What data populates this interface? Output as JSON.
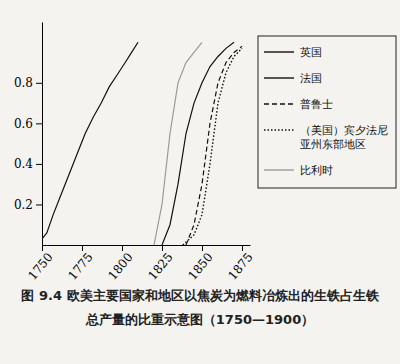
{
  "chart_data": {
    "type": "line",
    "title": "图 9.4  欧美主要国家和地区以焦炭为燃料冶炼出的生铁占生铁总产量的比重示意图（1750—1900）",
    "xlim": [
      1750,
      1880
    ],
    "xticks": [
      1750,
      1775,
      1800,
      1825,
      1850,
      1875
    ],
    "ylim": [
      0,
      1.1
    ],
    "yticks": [
      0.2,
      0.4,
      0.6,
      0.8
    ],
    "grid": false,
    "legend": "right",
    "series": [
      {
        "name": "英国",
        "color": "#111111",
        "line_style": "solid",
        "x": [
          1750,
          1753,
          1757,
          1762,
          1767,
          1772,
          1777,
          1782,
          1787,
          1792,
          1797,
          1802,
          1806,
          1810
        ],
        "values": [
          0.03,
          0.06,
          0.15,
          0.25,
          0.35,
          0.45,
          0.55,
          0.63,
          0.7,
          0.78,
          0.84,
          0.9,
          0.95,
          1.0
        ]
      },
      {
        "name": "法国",
        "color": "#111111",
        "line_style": "solid",
        "x": [
          1825,
          1830,
          1835,
          1840,
          1845,
          1850,
          1855,
          1860,
          1865,
          1870
        ],
        "values": [
          0,
          0.1,
          0.3,
          0.55,
          0.7,
          0.8,
          0.88,
          0.93,
          0.97,
          1.0
        ]
      },
      {
        "name": "普鲁士",
        "color": "#111111",
        "line_style": "dashed",
        "x": [
          1840,
          1845,
          1850,
          1855,
          1860,
          1865,
          1870,
          1875
        ],
        "values": [
          0,
          0.1,
          0.3,
          0.6,
          0.8,
          0.9,
          0.95,
          0.98
        ]
      },
      {
        "name": "（美国）宾夕法尼亚州东部地区",
        "color": "#111111",
        "line_style": "dotted",
        "x": [
          1838,
          1845,
          1850,
          1855,
          1860,
          1865,
          1870,
          1875
        ],
        "values": [
          0,
          0.05,
          0.15,
          0.4,
          0.7,
          0.85,
          0.93,
          0.97
        ]
      },
      {
        "name": "比利时",
        "color": "#9a9a9a",
        "line_style": "solid",
        "x": [
          1820,
          1825,
          1830,
          1835,
          1840,
          1845,
          1850
        ],
        "values": [
          0,
          0.2,
          0.55,
          0.8,
          0.9,
          0.95,
          1.0
        ]
      }
    ]
  }
}
